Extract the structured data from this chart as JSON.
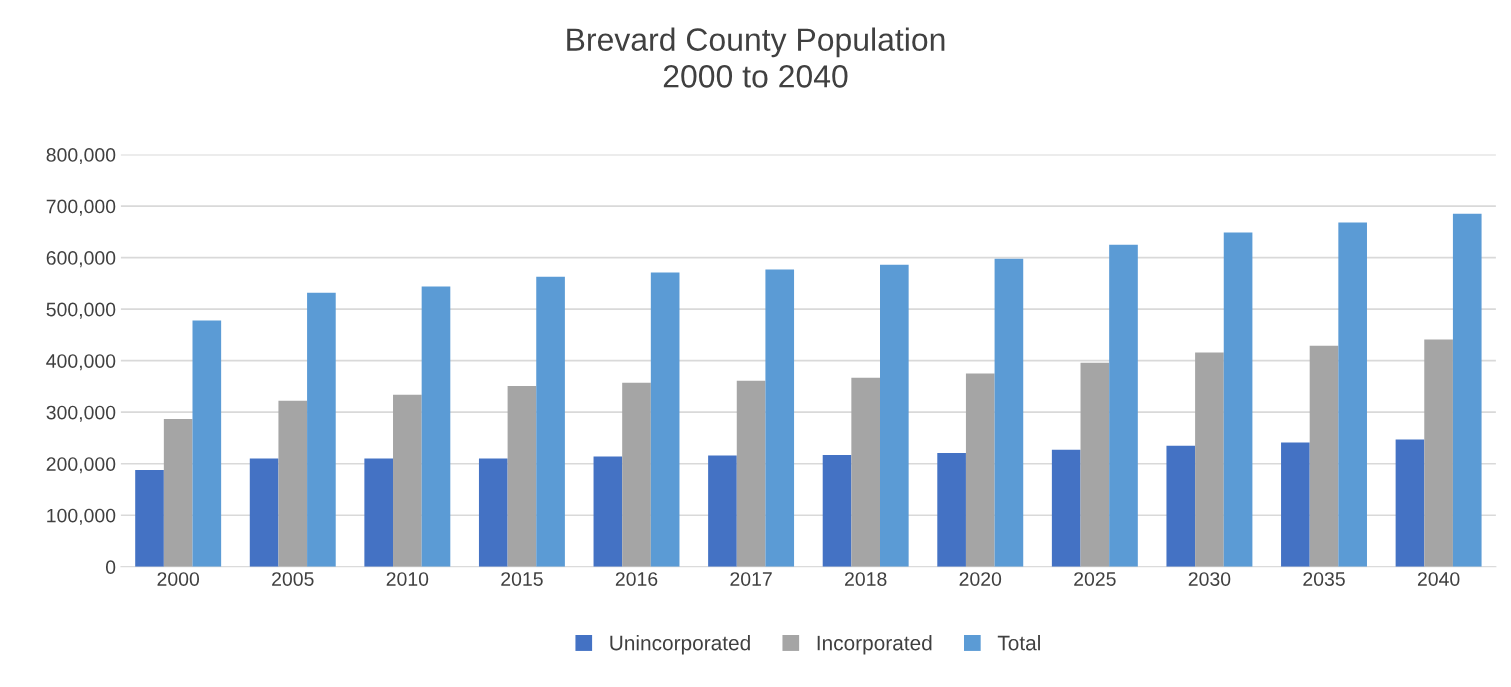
{
  "chart_data": {
    "type": "bar",
    "title": "Brevard County Population\n2000 to 2040",
    "categories": [
      "2000",
      "2005",
      "2010",
      "2015",
      "2016",
      "2017",
      "2018",
      "2020",
      "2025",
      "2030",
      "2035",
      "2040"
    ],
    "series": [
      {
        "name": "Unincorporated",
        "color": "#4472c4",
        "values": [
          188000,
          210000,
          210000,
          210000,
          214000,
          216000,
          217000,
          221000,
          227000,
          235000,
          241000,
          247000
        ]
      },
      {
        "name": "Incorporated",
        "color": "#a5a5a5",
        "values": [
          287000,
          322000,
          334000,
          351000,
          357000,
          361000,
          367000,
          375000,
          396000,
          416000,
          429000,
          441000
        ]
      },
      {
        "name": "Total",
        "color": "#5b9bd5",
        "values": [
          478000,
          532000,
          544000,
          563000,
          571000,
          577000,
          586000,
          598000,
          625000,
          649000,
          668000,
          685000
        ]
      }
    ],
    "ylim": [
      0,
      800000
    ],
    "yticks": [
      {
        "value": 0,
        "label": "0"
      },
      {
        "value": 100000,
        "label": "100,000"
      },
      {
        "value": 200000,
        "label": "200,000"
      },
      {
        "value": 300000,
        "label": "300,000"
      },
      {
        "value": 400000,
        "label": "400,000"
      },
      {
        "value": 500000,
        "label": "500,000"
      },
      {
        "value": 600000,
        "label": "600,000"
      },
      {
        "value": 700000,
        "label": "700,000"
      },
      {
        "value": 800000,
        "label": "800,000"
      }
    ],
    "grid": "y",
    "legend": "bottom"
  }
}
